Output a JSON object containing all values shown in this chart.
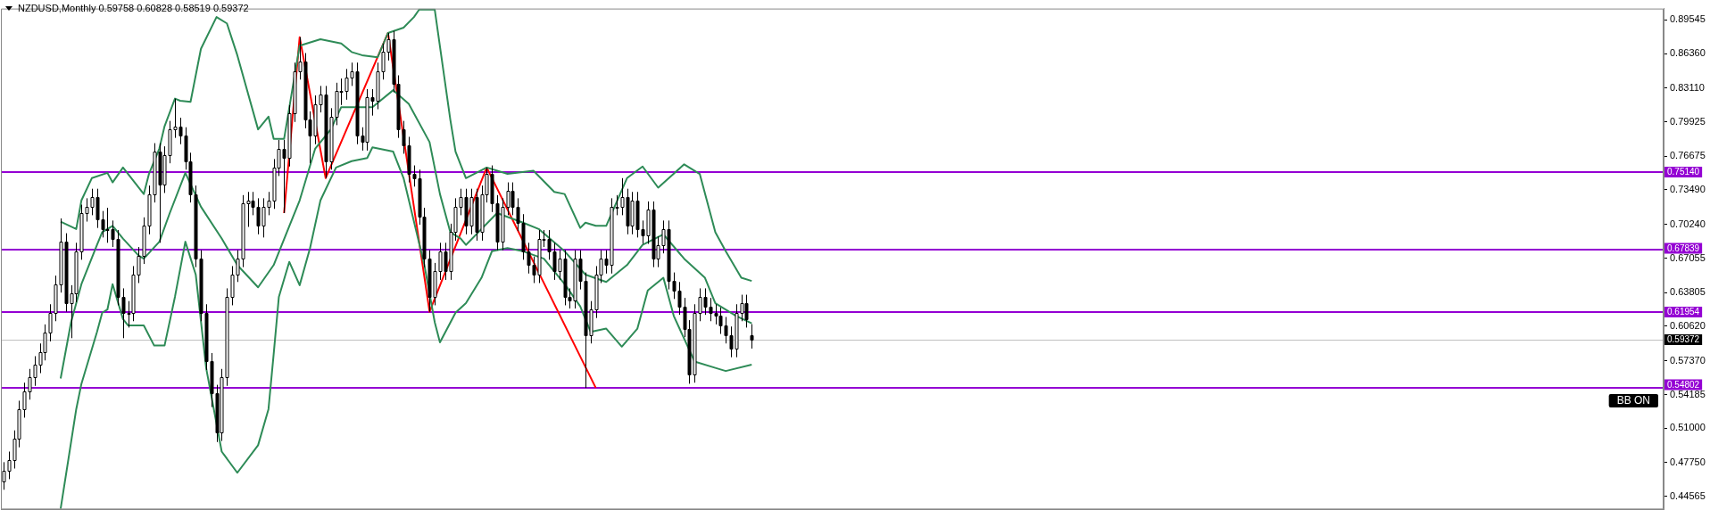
{
  "chart_data": {
    "type": "candlestick",
    "title": "NZDUSD,Monthly 0.59758 0.60828 0.58519 0.59372",
    "categories": [
      null,
      null,
      null,
      null,
      null,
      null,
      null,
      null,
      null,
      null,
      null,
      null,
      null,
      null,
      null,
      null,
      null,
      null,
      null,
      null,
      null,
      null,
      null,
      null,
      null,
      null,
      null,
      null,
      null,
      null,
      null,
      null,
      null,
      null,
      null,
      null,
      null,
      null,
      null,
      null,
      null,
      null,
      null,
      null,
      null,
      null,
      null,
      null,
      null,
      null,
      null,
      null,
      null,
      null,
      null,
      null,
      null,
      null,
      null,
      null,
      null,
      null,
      null,
      null,
      null,
      null,
      null,
      null,
      null,
      null,
      null,
      null,
      null,
      null,
      null,
      null,
      null,
      null,
      null,
      null,
      null,
      null,
      null,
      null,
      null,
      null,
      null,
      null,
      null,
      null,
      null,
      null,
      null,
      null,
      null,
      null,
      null,
      null,
      null,
      null,
      null,
      null,
      null,
      null,
      null,
      null,
      null,
      null,
      null,
      null,
      null,
      null,
      null,
      null,
      null,
      null,
      null,
      null,
      null,
      null,
      null,
      null,
      null,
      null,
      null,
      null,
      null,
      null,
      null,
      null,
      null,
      null,
      null,
      null,
      null,
      null,
      null,
      null,
      null,
      null,
      null,
      null,
      null,
      null,
      null,
      null,
      null,
      null,
      null,
      null,
      null,
      null,
      null,
      null,
      null,
      null,
      null,
      null,
      null,
      null,
      null,
      null,
      null,
      null,
      null,
      null,
      null,
      null,
      null,
      null,
      null,
      null,
      null,
      null,
      null,
      null,
      null,
      null,
      null,
      null,
      null,
      null,
      null,
      null,
      null,
      null,
      null,
      null,
      null,
      null,
      null,
      null,
      null,
      null,
      null,
      null,
      null,
      null,
      null,
      null,
      null,
      null,
      null,
      null,
      null,
      null,
      null,
      null,
      null,
      null,
      null,
      null,
      null,
      null,
      null,
      null,
      null,
      null,
      null,
      null,
      null,
      null,
      null,
      null,
      null,
      null,
      null,
      null,
      null,
      null,
      null,
      null,
      null,
      null,
      null,
      null,
      null,
      null,
      null,
      null,
      null,
      null,
      null,
      null,
      null,
      null,
      null,
      null,
      null,
      null,
      null,
      null,
      null,
      null,
      null,
      null,
      null,
      null,
      null,
      null,
      null,
      null,
      null,
      null,
      null,
      null,
      null,
      null,
      null,
      null,
      null,
      null,
      null,
      null,
      null,
      null,
      null,
      null,
      null,
      null,
      null,
      null,
      null,
      null,
      null,
      null,
      null,
      null,
      null,
      null,
      null,
      null,
      null,
      null,
      null,
      null,
      null,
      null,
      null,
      null,
      null,
      null,
      null,
      null,
      null,
      null,
      null,
      null,
      null,
      null,
      null,
      null,
      null,
      null,
      null,
      null,
      null,
      null,
      null,
      null
    ],
    "ohlc": [
      [
        0.46,
        0.478,
        0.452,
        0.47
      ],
      [
        0.47,
        0.488,
        0.462,
        0.48
      ],
      [
        0.48,
        0.508,
        0.472,
        0.5
      ],
      [
        0.5,
        0.536,
        0.492,
        0.528
      ],
      [
        0.528,
        0.553,
        0.52,
        0.545
      ],
      [
        0.545,
        0.566,
        0.537,
        0.558
      ],
      [
        0.558,
        0.578,
        0.55,
        0.57
      ],
      [
        0.57,
        0.59,
        0.562,
        0.582
      ],
      [
        0.582,
        0.608,
        0.574,
        0.6
      ],
      [
        0.6,
        0.627,
        0.592,
        0.619
      ],
      [
        0.619,
        0.654,
        0.611,
        0.646
      ],
      [
        0.646,
        0.708,
        0.638,
        0.686
      ],
      [
        0.686,
        0.694,
        0.62,
        0.628
      ],
      [
        0.628,
        0.645,
        0.595,
        0.637
      ],
      [
        0.637,
        0.685,
        0.629,
        0.677
      ],
      [
        0.677,
        0.721,
        0.669,
        0.713
      ],
      [
        0.713,
        0.727,
        0.705,
        0.719
      ],
      [
        0.719,
        0.736,
        0.711,
        0.728
      ],
      [
        0.728,
        0.736,
        0.699,
        0.707
      ],
      [
        0.707,
        0.715,
        0.69,
        0.698
      ],
      [
        0.698,
        0.718,
        0.685,
        0.698
      ],
      [
        0.698,
        0.706,
        0.681,
        0.689
      ],
      [
        0.689,
        0.697,
        0.626,
        0.634
      ],
      [
        0.634,
        0.642,
        0.595,
        0.619
      ],
      [
        0.619,
        0.63,
        0.605,
        0.619
      ],
      [
        0.619,
        0.663,
        0.611,
        0.655
      ],
      [
        0.655,
        0.681,
        0.647,
        0.673
      ],
      [
        0.673,
        0.709,
        0.665,
        0.701
      ],
      [
        0.701,
        0.739,
        0.693,
        0.731
      ],
      [
        0.731,
        0.779,
        0.723,
        0.771
      ],
      [
        0.771,
        0.779,
        0.685,
        0.74
      ],
      [
        0.74,
        0.776,
        0.732,
        0.768
      ],
      [
        0.768,
        0.8,
        0.76,
        0.792
      ],
      [
        0.792,
        0.821,
        0.784,
        0.795
      ],
      [
        0.795,
        0.803,
        0.778,
        0.786
      ],
      [
        0.786,
        0.794,
        0.754,
        0.762
      ],
      [
        0.762,
        0.77,
        0.723,
        0.731
      ],
      [
        0.731,
        0.739,
        0.662,
        0.67
      ],
      [
        0.67,
        0.678,
        0.611,
        0.619
      ],
      [
        0.619,
        0.627,
        0.565,
        0.573
      ],
      [
        0.573,
        0.581,
        0.53,
        0.543
      ],
      [
        0.543,
        0.551,
        0.497,
        0.506
      ],
      [
        0.506,
        0.566,
        0.498,
        0.558
      ],
      [
        0.558,
        0.642,
        0.55,
        0.634
      ],
      [
        0.634,
        0.663,
        0.626,
        0.655
      ],
      [
        0.655,
        0.678,
        0.648,
        0.67
      ],
      [
        0.67,
        0.73,
        0.662,
        0.722
      ],
      [
        0.722,
        0.733,
        0.7,
        0.725
      ],
      [
        0.725,
        0.733,
        0.711,
        0.719
      ],
      [
        0.719,
        0.727,
        0.693,
        0.701
      ],
      [
        0.701,
        0.727,
        0.69,
        0.719
      ],
      [
        0.719,
        0.733,
        0.711,
        0.725
      ],
      [
        0.725,
        0.764,
        0.717,
        0.756
      ],
      [
        0.756,
        0.782,
        0.748,
        0.774
      ],
      [
        0.774,
        0.782,
        0.713,
        0.765
      ],
      [
        0.765,
        0.815,
        0.757,
        0.807
      ],
      [
        0.807,
        0.855,
        0.799,
        0.847
      ],
      [
        0.847,
        0.879,
        0.839,
        0.856
      ],
      [
        0.856,
        0.864,
        0.793,
        0.801
      ],
      [
        0.801,
        0.809,
        0.76,
        0.786
      ],
      [
        0.786,
        0.824,
        0.778,
        0.816
      ],
      [
        0.816,
        0.833,
        0.808,
        0.825
      ],
      [
        0.825,
        0.833,
        0.746,
        0.762
      ],
      [
        0.762,
        0.812,
        0.754,
        0.804
      ],
      [
        0.804,
        0.836,
        0.796,
        0.828
      ],
      [
        0.828,
        0.84,
        0.815,
        0.828
      ],
      [
        0.828,
        0.849,
        0.82,
        0.841
      ],
      [
        0.841,
        0.855,
        0.833,
        0.847
      ],
      [
        0.847,
        0.855,
        0.778,
        0.786
      ],
      [
        0.786,
        0.794,
        0.772,
        0.78
      ],
      [
        0.78,
        0.83,
        0.772,
        0.822
      ],
      [
        0.822,
        0.83,
        0.805,
        0.819
      ],
      [
        0.819,
        0.855,
        0.811,
        0.847
      ],
      [
        0.847,
        0.873,
        0.839,
        0.865
      ],
      [
        0.865,
        0.883,
        0.857,
        0.877
      ],
      [
        0.877,
        0.885,
        0.827,
        0.835
      ],
      [
        0.835,
        0.843,
        0.784,
        0.792
      ],
      [
        0.792,
        0.8,
        0.769,
        0.777
      ],
      [
        0.777,
        0.785,
        0.742,
        0.75
      ],
      [
        0.75,
        0.758,
        0.738,
        0.746
      ],
      [
        0.746,
        0.754,
        0.702,
        0.71
      ],
      [
        0.71,
        0.718,
        0.662,
        0.67
      ],
      [
        0.67,
        0.678,
        0.62,
        0.634
      ],
      [
        0.634,
        0.666,
        0.626,
        0.658
      ],
      [
        0.658,
        0.685,
        0.65,
        0.677
      ],
      [
        0.677,
        0.685,
        0.65,
        0.658
      ],
      [
        0.658,
        0.703,
        0.65,
        0.695
      ],
      [
        0.695,
        0.727,
        0.687,
        0.719
      ],
      [
        0.719,
        0.736,
        0.711,
        0.728
      ],
      [
        0.728,
        0.736,
        0.693,
        0.701
      ],
      [
        0.701,
        0.736,
        0.693,
        0.728
      ],
      [
        0.728,
        0.736,
        0.687,
        0.695
      ],
      [
        0.695,
        0.739,
        0.687,
        0.731
      ],
      [
        0.731,
        0.756,
        0.723,
        0.75
      ],
      [
        0.75,
        0.758,
        0.714,
        0.722
      ],
      [
        0.722,
        0.73,
        0.678,
        0.686
      ],
      [
        0.686,
        0.727,
        0.678,
        0.719
      ],
      [
        0.719,
        0.742,
        0.711,
        0.734
      ],
      [
        0.734,
        0.742,
        0.711,
        0.719
      ],
      [
        0.719,
        0.727,
        0.696,
        0.704
      ],
      [
        0.704,
        0.712,
        0.669,
        0.677
      ],
      [
        0.677,
        0.685,
        0.656,
        0.664
      ],
      [
        0.664,
        0.672,
        0.647,
        0.655
      ],
      [
        0.655,
        0.697,
        0.647,
        0.689
      ],
      [
        0.689,
        0.697,
        0.681,
        0.689
      ],
      [
        0.689,
        0.697,
        0.669,
        0.677
      ],
      [
        0.677,
        0.685,
        0.65,
        0.658
      ],
      [
        0.658,
        0.678,
        0.65,
        0.67
      ],
      [
        0.67,
        0.678,
        0.626,
        0.634
      ],
      [
        0.634,
        0.642,
        0.623,
        0.631
      ],
      [
        0.631,
        0.678,
        0.623,
        0.67
      ],
      [
        0.67,
        0.678,
        0.641,
        0.649
      ],
      [
        0.649,
        0.657,
        0.548,
        0.598
      ],
      [
        0.598,
        0.63,
        0.59,
        0.622
      ],
      [
        0.622,
        0.663,
        0.614,
        0.655
      ],
      [
        0.655,
        0.678,
        0.647,
        0.67
      ],
      [
        0.67,
        0.678,
        0.656,
        0.664
      ],
      [
        0.664,
        0.727,
        0.656,
        0.719
      ],
      [
        0.719,
        0.73,
        0.711,
        0.719
      ],
      [
        0.719,
        0.746,
        0.711,
        0.728
      ],
      [
        0.728,
        0.736,
        0.693,
        0.701
      ],
      [
        0.701,
        0.733,
        0.693,
        0.725
      ],
      [
        0.725,
        0.733,
        0.69,
        0.698
      ],
      [
        0.698,
        0.706,
        0.684,
        0.692
      ],
      [
        0.692,
        0.724,
        0.684,
        0.716
      ],
      [
        0.716,
        0.724,
        0.662,
        0.67
      ],
      [
        0.67,
        0.691,
        0.662,
        0.683
      ],
      [
        0.683,
        0.706,
        0.675,
        0.698
      ],
      [
        0.698,
        0.706,
        0.641,
        0.649
      ],
      [
        0.649,
        0.657,
        0.632,
        0.64
      ],
      [
        0.64,
        0.648,
        0.617,
        0.625
      ],
      [
        0.625,
        0.633,
        0.596,
        0.604
      ],
      [
        0.604,
        0.612,
        0.552,
        0.561
      ],
      [
        0.561,
        0.627,
        0.553,
        0.619
      ],
      [
        0.619,
        0.642,
        0.611,
        0.634
      ],
      [
        0.634,
        0.642,
        0.617,
        0.625
      ],
      [
        0.625,
        0.633,
        0.611,
        0.619
      ],
      [
        0.619,
        0.627,
        0.608,
        0.616
      ],
      [
        0.616,
        0.624,
        0.599,
        0.607
      ],
      [
        0.607,
        0.615,
        0.59,
        0.598
      ],
      [
        0.598,
        0.606,
        0.577,
        0.585
      ],
      [
        0.585,
        0.627,
        0.577,
        0.619
      ],
      [
        0.619,
        0.636,
        0.611,
        0.628
      ],
      [
        0.628,
        0.636,
        0.605,
        0.613
      ],
      [
        0.59758,
        0.60828,
        0.58519,
        0.59372
      ],
      null,
      null,
      null,
      null,
      null,
      null,
      null,
      null,
      null,
      null,
      null,
      null,
      null,
      null,
      null,
      null,
      null,
      null,
      null,
      null,
      null,
      null,
      null,
      null,
      null,
      null,
      null,
      null,
      null,
      null,
      null,
      null,
      null,
      null,
      null,
      null,
      null,
      null,
      null,
      null,
      null,
      null,
      null,
      null,
      null,
      null,
      null,
      null,
      null,
      null,
      null,
      null,
      null,
      null,
      null,
      null,
      null,
      null,
      null,
      null,
      null,
      null,
      null,
      null,
      null,
      null,
      null,
      null,
      null,
      null,
      null,
      null,
      null,
      null,
      null,
      null,
      null,
      null,
      null,
      null,
      null,
      null,
      null,
      null,
      null,
      null,
      null,
      null,
      null,
      null,
      null,
      null,
      null,
      null,
      null,
      null,
      null,
      null,
      null,
      null,
      null,
      null,
      null,
      null,
      null,
      null,
      null,
      null,
      null,
      null,
      null,
      null,
      null,
      null,
      null,
      null,
      null,
      null,
      null,
      null,
      null,
      null,
      null,
      null,
      null,
      null,
      null,
      null,
      null,
      null,
      null,
      null,
      null,
      null,
      null,
      null,
      null,
      null,
      null,
      null,
      null,
      null,
      null,
      null,
      null,
      null,
      null,
      null,
      null,
      null,
      null,
      null,
      null,
      null,
      null,
      null,
      null,
      null,
      null,
      null,
      null,
      null,
      null,
      null,
      null,
      null,
      null,
      null,
      null,
      null,
      null,
      null,
      null,
      null,
      null
    ],
    "series": [
      {
        "type": "line",
        "color": "#2e8b57",
        "values": [
          null,
          null,
          null,
          null,
          null,
          null,
          null,
          null,
          null,
          null,
          null,
          0.705,
          null,
          null,
          0.698,
          0.725,
          null,
          0.746,
          null,
          null,
          0.751,
          0.742,
          null,
          0.756,
          null,
          null,
          null,
          0.731,
          0.75,
          null,
          0.774,
          0.795,
          null,
          0.821,
          0.819,
          null,
          0.818,
          null,
          0.868,
          null,
          null,
          0.898,
          null,
          0.892,
          null,
          0.862,
          null,
          null,
          null,
          0.792,
          null,
          0.804,
          0.783,
          null,
          0.783,
          null,
          null,
          0.871,
          null,
          null,
          null,
          0.877,
          null,
          null,
          null,
          0.873,
          null,
          0.865,
          null,
          0.862,
          null,
          null,
          0.86,
          null,
          0.883,
          null,
          null,
          0.888,
          null,
          0.898,
          0.905,
          null,
          null,
          0.905,
          null,
          null,
          0.801,
          0.771,
          null,
          0.746,
          null,
          null,
          null,
          0.756,
          null,
          null,
          null,
          0.75,
          null,
          null,
          null,
          null,
          0.753,
          null,
          null,
          null,
          0.733,
          null,
          0.731,
          null,
          null,
          0.699,
          0.704,
          null,
          0.701,
          null,
          0.701,
          null,
          null,
          null,
          0.746,
          null,
          null,
          0.757,
          null,
          null,
          0.737,
          null,
          null,
          null,
          null,
          0.759,
          null,
          null,
          0.75,
          null,
          null,
          0.695,
          null,
          0.677,
          null,
          null,
          0.652,
          null,
          0.649,
          null,
          null,
          null,
          null,
          null,
          null,
          null,
          null,
          null,
          null,
          null,
          null,
          null,
          null,
          null,
          null,
          null,
          null,
          null,
          null,
          null,
          null,
          null,
          null,
          null,
          null,
          null,
          null,
          null,
          null,
          null,
          null,
          null,
          null,
          null,
          null,
          null,
          null,
          null,
          null,
          null,
          null,
          null,
          null,
          null,
          null,
          null,
          null,
          null,
          null,
          null,
          null,
          null,
          null,
          null,
          null,
          null,
          null,
          null,
          null,
          null,
          null,
          null,
          null,
          null,
          null,
          null,
          null,
          null,
          null,
          null,
          null,
          null,
          null,
          null,
          null,
          null,
          null,
          null,
          null,
          null,
          null,
          null,
          null,
          null,
          null,
          null,
          null,
          null,
          null,
          null,
          null,
          null,
          null,
          null,
          null,
          null,
          null,
          null,
          null,
          null,
          null,
          null,
          null,
          null,
          null,
          null,
          null,
          null,
          null,
          null,
          null,
          null,
          null,
          null,
          null,
          null,
          null,
          null,
          null,
          null,
          null,
          null,
          null,
          null,
          null,
          null,
          null,
          null,
          null,
          null,
          null,
          null,
          null,
          null,
          null,
          null,
          null,
          null,
          null,
          null,
          null,
          null,
          null,
          null,
          null,
          null,
          null,
          null,
          null,
          null,
          null,
          null,
          null,
          null,
          null,
          null,
          null,
          null,
          null,
          null,
          null,
          null,
          null,
          null,
          null,
          null,
          null,
          null,
          null,
          null,
          null,
          null,
          null,
          null
        ]
      },
      {
        "type": "line",
        "color": "#2e8b57",
        "values": [
          null,
          null,
          null,
          null,
          null,
          null,
          null,
          null,
          null,
          null,
          null,
          0.557,
          null,
          0.61,
          null,
          0.646,
          null,
          null,
          0.683,
          0.695,
          null,
          0.701,
          null,
          0.689,
          null,
          null,
          0.673,
          0.67,
          null,
          null,
          0.686,
          null,
          0.713,
          null,
          null,
          0.751,
          null,
          null,
          0.719,
          null,
          null,
          null,
          0.689,
          null,
          null,
          0.664,
          null,
          null,
          null,
          0.643,
          null,
          null,
          0.664,
          null,
          null,
          null,
          null,
          0.725,
          null,
          null,
          0.774,
          null,
          null,
          0.792,
          null,
          0.813,
          null,
          null,
          0.813,
          null,
          null,
          0.813,
          null,
          null,
          null,
          0.829,
          null,
          null,
          0.816,
          null,
          null,
          null,
          0.78,
          null,
          0.731,
          null,
          0.695,
          null,
          0.689,
          0.683,
          null,
          null,
          0.698,
          null,
          null,
          0.713,
          null,
          null,
          null,
          null,
          0.704,
          null,
          null,
          0.698,
          null,
          null,
          null,
          null,
          0.677,
          null,
          null,
          null,
          0.655,
          null,
          null,
          null,
          0.648,
          null,
          null,
          null,
          0.664,
          null,
          null,
          0.683,
          null,
          null,
          null,
          0.693,
          null,
          null,
          null,
          0.67,
          null,
          null,
          null,
          0.652,
          null,
          0.628,
          null,
          null,
          null,
          0.616,
          null,
          null,
          0.609,
          null,
          null,
          null,
          null,
          null,
          null,
          null,
          null,
          null,
          null,
          null,
          null,
          null,
          null,
          null,
          null,
          null,
          null,
          null,
          null,
          null,
          null,
          null,
          null,
          null,
          null,
          null,
          null,
          null,
          null,
          null,
          null,
          null,
          null,
          null,
          null,
          null,
          null,
          null,
          null,
          null,
          null,
          null,
          null,
          null,
          null,
          null,
          null,
          null,
          null,
          null,
          null,
          null,
          null,
          null,
          null,
          null,
          null,
          null,
          null,
          null,
          null,
          null,
          null,
          null,
          null,
          null,
          null,
          null,
          null,
          null,
          null,
          null,
          null,
          null,
          null,
          null,
          null,
          null,
          null,
          null,
          null,
          null,
          null,
          null,
          null,
          null,
          null,
          null,
          null,
          null,
          null,
          null,
          null,
          null,
          null,
          null,
          null,
          null,
          null,
          null,
          null,
          null,
          null,
          null,
          null,
          null,
          null,
          null,
          null,
          null,
          null,
          null,
          null,
          null,
          null,
          null,
          null,
          null,
          null,
          null,
          null,
          null,
          null,
          null,
          null,
          null,
          null,
          null,
          null,
          null,
          null,
          null,
          null,
          null,
          null,
          null,
          null,
          null,
          null,
          null,
          null,
          null,
          null,
          null,
          null,
          null,
          null,
          null,
          null,
          null,
          null,
          null,
          null,
          null,
          null,
          null,
          null,
          null,
          null,
          null,
          null,
          null,
          null,
          null,
          null,
          null,
          null,
          null,
          null,
          null,
          null,
          null,
          null,
          null
        ]
      },
      {
        "type": "line",
        "color": "#2e8b57",
        "values": [
          null,
          null,
          null,
          null,
          null,
          null,
          null,
          null,
          null,
          null,
          null,
          0.434,
          null,
          null,
          0.528,
          0.552,
          null,
          null,
          0.601,
          0.619,
          0.622,
          0.646,
          null,
          0.613,
          0.607,
          null,
          null,
          0.607,
          null,
          0.588,
          null,
          0.588,
          null,
          0.634,
          null,
          0.686,
          null,
          0.655,
          null,
          0.567,
          null,
          null,
          0.488,
          null,
          null,
          0.468,
          null,
          null,
          null,
          0.494,
          null,
          0.528,
          0.58,
          0.634,
          null,
          0.667,
          null,
          0.645,
          null,
          0.68,
          null,
          0.725,
          null,
          null,
          0.756,
          null,
          null,
          0.762,
          null,
          null,
          0.765,
          0.775,
          null,
          null,
          null,
          0.771,
          null,
          0.746,
          null,
          null,
          null,
          0.664,
          null,
          0.61,
          0.591,
          null,
          null,
          0.619,
          null,
          0.628,
          null,
          null,
          0.652,
          null,
          0.677,
          null,
          null,
          0.68,
          null,
          null,
          0.677,
          null,
          null,
          null,
          0.67,
          null,
          null,
          null,
          0.646,
          null,
          null,
          0.625,
          null,
          0.601,
          null,
          null,
          0.604,
          null,
          null,
          0.587,
          null,
          null,
          0.604,
          null,
          0.64,
          null,
          null,
          0.652,
          null,
          0.616,
          null,
          null,
          null,
          0.573,
          null,
          null,
          null,
          0.567,
          null,
          0.564,
          null,
          null,
          null,
          null,
          0.57,
          null,
          null,
          null,
          null,
          null,
          null,
          null,
          null,
          null,
          null,
          null,
          null,
          null,
          null,
          null,
          null,
          null,
          null,
          null,
          null,
          null,
          null,
          null,
          null,
          null,
          null,
          null,
          null,
          null,
          null,
          null,
          null,
          null,
          null,
          null,
          null,
          null,
          null,
          null,
          null,
          null,
          null,
          null,
          null,
          null,
          null,
          null,
          null,
          null,
          null,
          null,
          null,
          null,
          null,
          null,
          null,
          null,
          null,
          null,
          null,
          null,
          null,
          null,
          null,
          null,
          null,
          null,
          null,
          null,
          null,
          null,
          null,
          null,
          null,
          null,
          null,
          null,
          null,
          null,
          null,
          null,
          null,
          null,
          null,
          null,
          null,
          null,
          null,
          null,
          null,
          null,
          null,
          null,
          null,
          null,
          null,
          null,
          null,
          null,
          null,
          null,
          null,
          null,
          null,
          null,
          null,
          null,
          null,
          null,
          null,
          null,
          null,
          null,
          null,
          null,
          null,
          null,
          null,
          null,
          null,
          null,
          null,
          null,
          null,
          null,
          null,
          null,
          null,
          null,
          null,
          null,
          null,
          null,
          null,
          null,
          null,
          null,
          null,
          null,
          null,
          null,
          null,
          null,
          null,
          null,
          null,
          null,
          null,
          null,
          null,
          null,
          null,
          null,
          null,
          null,
          null,
          null,
          null,
          null,
          null,
          null,
          null,
          null,
          null,
          null,
          null,
          null,
          null,
          null,
          null,
          null,
          null,
          null,
          null,
          null
        ]
      },
      {
        "type": "line",
        "color": "#ff0000",
        "values": [
          null,
          null,
          null,
          null,
          null,
          null,
          null,
          null,
          null,
          null,
          null,
          null,
          null,
          null,
          null,
          null,
          null,
          null,
          null,
          null,
          null,
          null,
          null,
          null,
          null,
          null,
          null,
          null,
          null,
          null,
          null,
          null,
          null,
          null,
          null,
          null,
          null,
          null,
          null,
          null,
          null,
          null,
          null,
          null,
          null,
          null,
          null,
          null,
          null,
          null,
          null,
          null,
          null,
          null,
          0.713,
          null,
          null,
          0.879,
          null,
          null,
          null,
          null,
          0.746,
          null,
          null,
          null,
          null,
          null,
          null,
          null,
          null,
          null,
          null,
          null,
          0.883,
          null,
          null,
          null,
          null,
          null,
          null,
          null,
          0.62,
          null,
          null,
          null,
          null,
          null,
          null,
          null,
          null,
          null,
          null,
          0.756,
          null,
          null,
          null,
          null,
          null,
          null,
          null,
          null,
          null,
          null,
          null,
          null,
          null,
          null,
          null,
          null,
          null,
          null,
          null,
          null,
          0.548,
          null,
          null,
          null,
          null,
          null,
          null,
          null,
          null,
          null,
          null,
          null,
          null,
          null,
          null,
          null,
          null,
          null,
          null,
          null,
          null,
          null,
          null,
          null,
          null,
          null,
          null,
          null,
          null,
          null,
          null,
          null,
          null,
          null,
          null,
          null,
          null,
          null,
          null,
          null,
          null,
          null,
          null,
          null,
          null,
          null,
          null,
          null,
          null,
          null,
          null,
          null,
          null,
          null,
          null,
          null,
          null,
          null,
          null,
          null,
          null,
          null,
          null,
          null,
          null,
          null,
          null,
          null,
          null,
          null,
          null,
          null,
          null,
          null,
          null,
          null,
          null,
          null,
          null,
          null,
          null,
          null,
          null,
          null,
          null,
          null,
          null,
          null,
          null,
          null,
          null,
          null,
          null,
          null,
          null,
          null,
          null,
          null,
          null,
          null,
          null,
          null,
          null,
          null,
          null,
          null,
          null,
          null,
          null,
          null,
          null,
          null,
          null,
          null,
          null,
          null,
          null,
          null,
          null,
          null,
          null,
          null,
          null,
          null,
          null,
          null,
          null,
          null,
          null,
          null,
          null,
          null,
          null,
          null,
          null,
          null,
          null,
          null,
          null,
          null,
          null,
          null,
          null,
          null,
          null,
          null,
          null,
          null,
          null,
          null,
          null,
          null,
          null,
          null,
          null,
          null,
          null,
          null,
          null,
          null,
          null,
          null,
          null,
          null,
          null,
          null,
          null,
          null,
          null,
          null,
          null,
          null,
          null,
          null,
          null,
          null,
          null,
          null,
          null,
          null,
          null,
          null,
          null,
          null,
          null,
          null,
          null,
          null,
          null,
          null,
          null,
          null,
          null,
          null,
          null,
          null,
          null,
          null,
          null,
          null,
          null,
          null,
          null,
          null,
          null,
          null
        ]
      }
    ],
    "ylim": [
      0.4334,
      0.906
    ],
    "yticks": [
      0.89545,
      {
        "value": 0.8636,
        "label": "0.86360"
      },
      {
        "value": 0.8311,
        "label": "0.83110"
      },
      0.79925,
      0.76675,
      {
        "value": 0.7349,
        "label": "0.73490"
      },
      {
        "value": 0.7024,
        "label": "0.70240"
      },
      0.67055,
      0.63805,
      {
        "value": 0.6062,
        "label": "0.60620"
      },
      {
        "value": 0.5737,
        "label": "0.57370"
      },
      0.54185,
      {
        "value": 0.51,
        "label": "0.51000"
      },
      {
        "value": 0.4775,
        "label": "0.47750"
      },
      0.44565
    ],
    "ref_lines": [
      {
        "axis": "y",
        "value": 0.7514,
        "label": "0.75140",
        "color": "#9400d3"
      },
      {
        "axis": "y",
        "value": 0.67839,
        "label": "0.67839",
        "color": "#9400d3"
      },
      {
        "axis": "y",
        "value": 0.61954,
        "label": "0.61954",
        "color": "#9400d3"
      },
      {
        "axis": "y",
        "value": 0.54802,
        "label": "0.54802",
        "color": "#9400d3"
      },
      {
        "axis": "y",
        "value": 0.59372,
        "label": "0.59372",
        "color": "#c0c0c0"
      }
    ],
    "annotations": [
      "BB ON"
    ],
    "tick_labels": "y",
    "grid": false,
    "legend": false,
    "marker": "none"
  }
}
